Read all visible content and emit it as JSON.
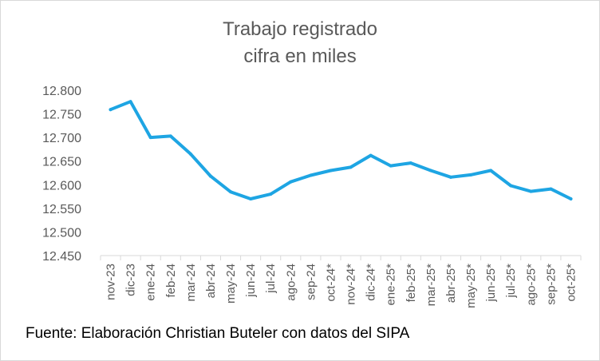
{
  "chart_data": {
    "type": "line",
    "title_line1": "Trabajo registrado",
    "title_line2": "cifra en miles",
    "categories": [
      "nov-23",
      "dic-23",
      "ene-24",
      "feb-24",
      "mar-24",
      "abr-24",
      "may-24",
      "jun-24",
      "jul-24",
      "ago-24",
      "sep-24",
      "oct-24*",
      "nov-24*",
      "dic-24*",
      "ene-25*",
      "feb-25*",
      "mar-25*",
      "abr-25*",
      "may-25*",
      "jun-25*",
      "jul-25*",
      "ago-25*",
      "sep-25*",
      "oct-25*"
    ],
    "series": [
      {
        "values": [
          12759,
          12776,
          12700,
          12703,
          12665,
          12618,
          12585,
          12570,
          12580,
          12606,
          12620,
          12630,
          12637,
          12662,
          12640,
          12646,
          12630,
          12616,
          12621,
          12630,
          12598,
          12586,
          12591,
          12570
        ],
        "color": "#1ea5e3"
      }
    ],
    "yticks": [
      "12.450",
      "12.500",
      "12.550",
      "12.600",
      "12.650",
      "12.700",
      "12.750",
      "12.800"
    ],
    "ylim": [
      12450,
      12800
    ],
    "grid": false,
    "legend": "none"
  },
  "footer": {
    "source": "Fuente: Elaboración Christian Buteler con datos del SIPA"
  }
}
